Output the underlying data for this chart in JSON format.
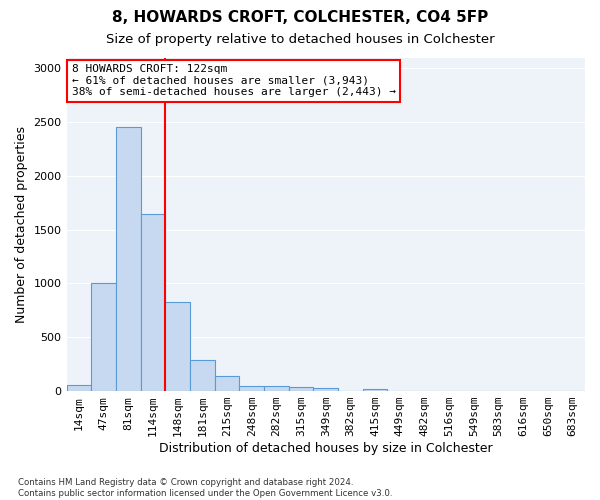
{
  "title1": "8, HOWARDS CROFT, COLCHESTER, CO4 5FP",
  "title2": "Size of property relative to detached houses in Colchester",
  "xlabel": "Distribution of detached houses by size in Colchester",
  "ylabel": "Number of detached properties",
  "footnote": "Contains HM Land Registry data © Crown copyright and database right 2024.\nContains public sector information licensed under the Open Government Licence v3.0.",
  "bin_labels": [
    "14sqm",
    "47sqm",
    "81sqm",
    "114sqm",
    "148sqm",
    "181sqm",
    "215sqm",
    "248sqm",
    "282sqm",
    "315sqm",
    "349sqm",
    "382sqm",
    "415sqm",
    "449sqm",
    "482sqm",
    "516sqm",
    "549sqm",
    "583sqm",
    "616sqm",
    "650sqm",
    "683sqm"
  ],
  "bar_values": [
    55,
    1000,
    2450,
    1650,
    830,
    285,
    140,
    45,
    45,
    35,
    25,
    0,
    20,
    0,
    0,
    0,
    0,
    0,
    0,
    0,
    0
  ],
  "bar_color": "#c6d9f0",
  "bar_edge_color": "#5b9bd5",
  "vline_color": "red",
  "vline_x_index": 3,
  "annotation_text": "8 HOWARDS CROFT: 122sqm\n← 61% of detached houses are smaller (3,943)\n38% of semi-detached houses are larger (2,443) →",
  "annotation_box_color": "white",
  "annotation_box_edge_color": "red",
  "ylim": [
    0,
    3100
  ],
  "yticks": [
    0,
    500,
    1000,
    1500,
    2000,
    2500,
    3000
  ],
  "bg_color": "#eef2f9",
  "grid_color": "white",
  "title1_fontsize": 11,
  "title2_fontsize": 9.5,
  "xlabel_fontsize": 9,
  "ylabel_fontsize": 9,
  "tick_fontsize": 8,
  "annot_fontsize": 8
}
